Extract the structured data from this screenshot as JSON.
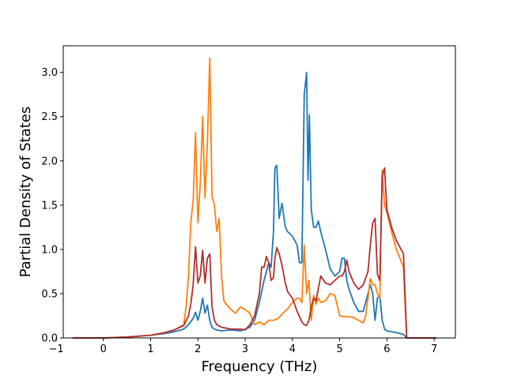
{
  "chart_data": {
    "type": "line",
    "title": "",
    "xlabel": "Frequency (THz)",
    "ylabel": "Partial Density of States",
    "xlim": [
      -0.85,
      7.45
    ],
    "ylim": [
      0.0,
      3.3
    ],
    "xticks": [
      -1,
      0,
      1,
      2,
      3,
      4,
      5,
      6,
      7
    ],
    "xtick_labels": [
      "−1",
      "0",
      "1",
      "2",
      "3",
      "4",
      "5",
      "6",
      "7"
    ],
    "yticks": [
      0.0,
      0.5,
      1.0,
      1.5,
      2.0,
      2.5,
      3.0
    ],
    "ytick_labels": [
      "0.0",
      "0.5",
      "1.0",
      "1.5",
      "2.0",
      "2.5",
      "3.0"
    ],
    "grid": false,
    "legend": false,
    "series": [
      {
        "color": "#1f77b4",
        "x": [
          -0.65,
          0.0,
          0.5,
          1.0,
          1.3,
          1.5,
          1.7,
          1.8,
          1.9,
          1.95,
          2.0,
          2.05,
          2.1,
          2.15,
          2.2,
          2.25,
          2.3,
          2.35,
          2.4,
          2.5,
          2.7,
          2.9,
          3.0,
          3.1,
          3.2,
          3.3,
          3.4,
          3.5,
          3.55,
          3.6,
          3.63,
          3.67,
          3.72,
          3.78,
          3.85,
          3.9,
          4.0,
          4.1,
          4.15,
          4.2,
          4.25,
          4.3,
          4.33,
          4.36,
          4.4,
          4.45,
          4.5,
          4.55,
          4.6,
          4.65,
          4.7,
          4.8,
          4.9,
          5.0,
          5.05,
          5.1,
          5.15,
          5.2,
          5.3,
          5.4,
          5.5,
          5.6,
          5.65,
          5.7,
          5.75,
          5.8,
          5.85,
          5.9,
          5.95,
          6.0,
          6.2,
          6.35,
          6.42,
          6.45,
          6.5,
          7.05
        ],
        "y": [
          0.0,
          0.0,
          0.01,
          0.03,
          0.05,
          0.07,
          0.1,
          0.15,
          0.22,
          0.29,
          0.2,
          0.3,
          0.45,
          0.28,
          0.37,
          0.2,
          0.12,
          0.1,
          0.09,
          0.08,
          0.09,
          0.08,
          0.1,
          0.12,
          0.2,
          0.4,
          0.65,
          0.85,
          0.8,
          1.2,
          1.92,
          1.95,
          1.35,
          1.52,
          1.25,
          1.2,
          1.15,
          1.05,
          0.85,
          0.85,
          2.75,
          3.0,
          1.78,
          2.52,
          1.45,
          1.25,
          1.25,
          1.32,
          1.2,
          1.1,
          1.0,
          0.78,
          0.7,
          0.75,
          0.9,
          0.9,
          0.65,
          0.55,
          0.4,
          0.3,
          0.3,
          0.5,
          0.6,
          0.5,
          0.2,
          0.45,
          0.48,
          0.2,
          0.1,
          0.08,
          0.06,
          0.04,
          0.0,
          0.0,
          0.0,
          0.0
        ]
      },
      {
        "color": "#ff7f0e",
        "x": [
          -0.65,
          0.0,
          0.5,
          1.0,
          1.3,
          1.5,
          1.7,
          1.75,
          1.8,
          1.85,
          1.9,
          1.95,
          2.0,
          2.05,
          2.1,
          2.15,
          2.2,
          2.25,
          2.3,
          2.35,
          2.4,
          2.45,
          2.5,
          2.55,
          2.6,
          2.7,
          2.8,
          2.9,
          3.0,
          3.1,
          3.2,
          3.3,
          3.4,
          3.5,
          3.6,
          3.7,
          3.8,
          3.9,
          4.0,
          4.1,
          4.15,
          4.2,
          4.25,
          4.3,
          4.35,
          4.4,
          4.45,
          4.5,
          4.55,
          4.6,
          4.7,
          4.8,
          4.9,
          5.0,
          5.1,
          5.2,
          5.3,
          5.4,
          5.5,
          5.55,
          5.6,
          5.65,
          5.7,
          5.75,
          5.8,
          5.85,
          5.9,
          5.95,
          6.0,
          6.1,
          6.2,
          6.35,
          6.42,
          6.45,
          6.5,
          7.05
        ],
        "y": [
          0.0,
          0.0,
          0.01,
          0.03,
          0.06,
          0.09,
          0.15,
          0.35,
          0.7,
          1.3,
          1.55,
          2.32,
          1.3,
          1.75,
          2.5,
          1.58,
          2.2,
          3.16,
          1.6,
          1.5,
          1.2,
          1.35,
          0.7,
          0.42,
          0.38,
          0.32,
          0.28,
          0.35,
          0.32,
          0.28,
          0.15,
          0.18,
          0.15,
          0.2,
          0.2,
          0.22,
          0.28,
          0.33,
          0.4,
          0.45,
          0.45,
          0.4,
          1.05,
          0.5,
          0.65,
          0.2,
          0.48,
          0.38,
          0.45,
          0.4,
          0.42,
          0.5,
          0.48,
          0.25,
          0.24,
          0.24,
          0.23,
          0.2,
          0.17,
          0.25,
          0.45,
          0.67,
          0.6,
          0.6,
          0.5,
          0.45,
          1.9,
          1.5,
          1.42,
          1.2,
          1.0,
          0.8,
          0.0,
          0.0,
          0.0,
          0.0
        ]
      },
      {
        "color": "#b22e2e",
        "x": [
          -0.65,
          0.0,
          0.5,
          1.0,
          1.3,
          1.5,
          1.7,
          1.8,
          1.85,
          1.9,
          1.95,
          2.0,
          2.05,
          2.1,
          2.15,
          2.2,
          2.25,
          2.3,
          2.35,
          2.4,
          2.5,
          2.7,
          2.9,
          3.0,
          3.1,
          3.2,
          3.3,
          3.35,
          3.4,
          3.45,
          3.5,
          3.55,
          3.6,
          3.63,
          3.67,
          3.72,
          3.78,
          3.85,
          3.9,
          4.0,
          4.1,
          4.2,
          4.25,
          4.3,
          4.35,
          4.4,
          4.45,
          4.5,
          4.6,
          4.7,
          4.8,
          4.9,
          5.0,
          5.05,
          5.1,
          5.15,
          5.2,
          5.3,
          5.4,
          5.5,
          5.6,
          5.65,
          5.7,
          5.75,
          5.8,
          5.85,
          5.9,
          5.95,
          6.0,
          6.1,
          6.2,
          6.35,
          6.42,
          6.45,
          6.5,
          7.05
        ],
        "y": [
          0.0,
          0.0,
          0.01,
          0.03,
          0.06,
          0.09,
          0.14,
          0.25,
          0.38,
          0.6,
          1.03,
          0.62,
          0.7,
          0.99,
          0.62,
          0.9,
          0.95,
          0.35,
          0.2,
          0.15,
          0.12,
          0.1,
          0.1,
          0.09,
          0.15,
          0.25,
          0.5,
          0.8,
          0.8,
          0.92,
          0.85,
          0.65,
          0.68,
          0.9,
          1.02,
          0.95,
          0.82,
          0.62,
          0.52,
          0.45,
          0.3,
          0.18,
          0.15,
          0.14,
          0.2,
          0.35,
          0.45,
          0.42,
          0.7,
          0.62,
          0.6,
          0.65,
          0.7,
          0.7,
          0.75,
          0.88,
          0.75,
          0.62,
          0.55,
          0.6,
          0.75,
          1.05,
          1.3,
          1.35,
          0.72,
          0.65,
          1.82,
          1.92,
          1.45,
          1.25,
          1.1,
          0.95,
          0.0,
          0.0,
          0.0,
          0.0
        ]
      }
    ]
  }
}
